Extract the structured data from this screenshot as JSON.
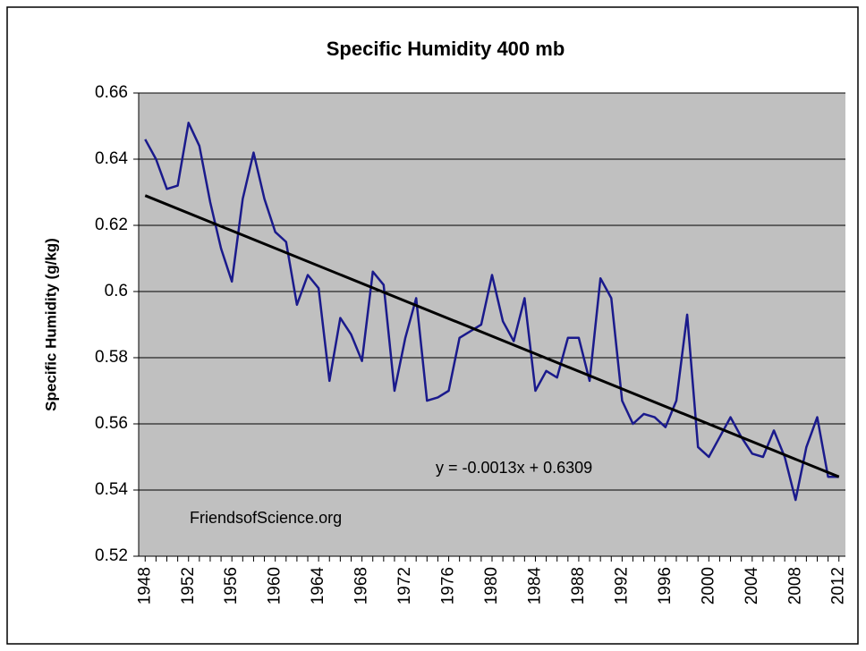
{
  "chart_data": {
    "type": "line",
    "title": "Specific Humidity 400 mb",
    "y_label": "Specific Humidity (g/kg)",
    "annotations": [
      "y = -0.0013x + 0.6309",
      "FriendsofScience.org"
    ],
    "x": [
      1948,
      1949,
      1950,
      1951,
      1952,
      1953,
      1954,
      1955,
      1956,
      1957,
      1958,
      1959,
      1960,
      1961,
      1962,
      1963,
      1964,
      1965,
      1966,
      1967,
      1968,
      1969,
      1970,
      1971,
      1972,
      1973,
      1974,
      1975,
      1976,
      1977,
      1978,
      1979,
      1980,
      1981,
      1982,
      1983,
      1984,
      1985,
      1986,
      1987,
      1988,
      1989,
      1990,
      1991,
      1992,
      1993,
      1994,
      1995,
      1996,
      1997,
      1998,
      1999,
      2000,
      2001,
      2002,
      2003,
      2004,
      2005,
      2006,
      2007,
      2008,
      2009,
      2010,
      2011,
      2012
    ],
    "series": [
      {
        "color": "#1a1a8c",
        "values": [
          0.646,
          0.64,
          0.631,
          0.632,
          0.651,
          0.644,
          0.627,
          0.613,
          0.603,
          0.628,
          0.642,
          0.628,
          0.618,
          0.615,
          0.596,
          0.605,
          0.601,
          0.573,
          0.592,
          0.587,
          0.579,
          0.606,
          0.602,
          0.57,
          0.586,
          0.598,
          0.567,
          0.568,
          0.57,
          0.586,
          0.588,
          0.59,
          0.605,
          0.591,
          0.585,
          0.598,
          0.57,
          0.576,
          0.574,
          0.586,
          0.586,
          0.573,
          0.604,
          0.598,
          0.567,
          0.56,
          0.563,
          0.562,
          0.559,
          0.567,
          0.593,
          0.553,
          0.55,
          0.556,
          0.562,
          0.556,
          0.551,
          0.55,
          0.558,
          0.55,
          0.537,
          0.553,
          0.562,
          0.544,
          0.544
        ]
      }
    ],
    "trendline": {
      "color": "#000000",
      "x": [
        1948,
        2012
      ],
      "values": [
        0.629,
        0.544
      ]
    },
    "xlim": [
      1947.4,
      2012.6
    ],
    "xticks": [
      1948,
      1952,
      1956,
      1960,
      1964,
      1968,
      1972,
      1976,
      1980,
      1984,
      1988,
      1992,
      1996,
      2000,
      2004,
      2008,
      2012
    ],
    "ylim": [
      0.52,
      0.66
    ],
    "yticks": [
      0.52,
      0.54,
      0.56,
      0.58,
      0.6,
      0.62,
      0.64,
      0.66
    ],
    "grid": true
  }
}
